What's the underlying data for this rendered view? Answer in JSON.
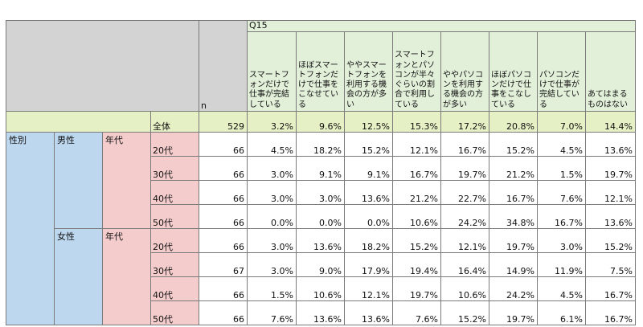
{
  "question_label": "Q15",
  "n_label": "n",
  "columns": [
    "スマートフォンだけで仕事が完結している",
    "ほぼスマートフォンだけで仕事をこなせている",
    "ややスマートフォンを利用する機会の方が多い",
    "スマートフォンとパソコンが半々ぐらいの割合で利用している",
    "ややパソコンを利用する機会の方が多い",
    "ほぼパソコンだけで仕事をこなしている",
    "パソコンだけで仕事が完結している",
    "あてはまるものはない"
  ],
  "total": {
    "label": "全体",
    "n": "529",
    "values": [
      "3.2%",
      "9.6%",
      "12.5%",
      "15.3%",
      "17.2%",
      "20.8%",
      "7.0%",
      "14.4%"
    ]
  },
  "group_labels": {
    "gender": "性別",
    "male": "男性",
    "female": "女性",
    "age": "年代"
  },
  "rows": [
    {
      "gender": "男性",
      "age": "20代",
      "n": "66",
      "values": [
        "4.5%",
        "18.2%",
        "15.2%",
        "12.1%",
        "16.7%",
        "15.2%",
        "4.5%",
        "13.6%"
      ]
    },
    {
      "gender": "男性",
      "age": "30代",
      "n": "66",
      "values": [
        "3.0%",
        "9.1%",
        "9.1%",
        "16.7%",
        "19.7%",
        "21.2%",
        "1.5%",
        "19.7%"
      ]
    },
    {
      "gender": "男性",
      "age": "40代",
      "n": "66",
      "values": [
        "3.0%",
        "3.0%",
        "13.6%",
        "21.2%",
        "22.7%",
        "16.7%",
        "7.6%",
        "12.1%"
      ]
    },
    {
      "gender": "男性",
      "age": "50代",
      "n": "66",
      "values": [
        "0.0%",
        "0.0%",
        "0.0%",
        "10.6%",
        "24.2%",
        "34.8%",
        "16.7%",
        "13.6%"
      ]
    },
    {
      "gender": "女性",
      "age": "20代",
      "n": "66",
      "values": [
        "3.0%",
        "13.6%",
        "18.2%",
        "15.2%",
        "12.1%",
        "19.7%",
        "3.0%",
        "15.2%"
      ]
    },
    {
      "gender": "女性",
      "age": "30代",
      "n": "67",
      "values": [
        "3.0%",
        "9.0%",
        "17.9%",
        "19.4%",
        "16.4%",
        "14.9%",
        "11.9%",
        "7.5%"
      ]
    },
    {
      "gender": "女性",
      "age": "40代",
      "n": "66",
      "values": [
        "1.5%",
        "10.6%",
        "12.1%",
        "19.7%",
        "10.6%",
        "24.2%",
        "4.5%",
        "16.7%"
      ]
    },
    {
      "gender": "女性",
      "age": "50代",
      "n": "66",
      "values": [
        "7.6%",
        "13.6%",
        "13.6%",
        "7.6%",
        "15.2%",
        "19.7%",
        "6.1%",
        "16.7%"
      ]
    }
  ],
  "chart_data": {
    "type": "table",
    "columns": [
      "スマートフォンだけで仕事が完結している",
      "ほぼスマートフォンだけで仕事をこなせている",
      "ややスマートフォンを利用する機会の方が多い",
      "スマートフォンとパソコンが半々ぐらいの割合で利用している",
      "ややパソコンを利用する機会の方が多い",
      "ほぼパソコンだけで仕事をこなしている",
      "パソコンだけで仕事が完結している",
      "あてはまるものはない"
    ],
    "rows": [
      {
        "label": "全体",
        "n": 529,
        "values": [
          3.2,
          9.6,
          12.5,
          15.3,
          17.2,
          20.8,
          7.0,
          14.4
        ]
      },
      {
        "label": "男性 20代",
        "n": 66,
        "values": [
          4.5,
          18.2,
          15.2,
          12.1,
          16.7,
          15.2,
          4.5,
          13.6
        ]
      },
      {
        "label": "男性 30代",
        "n": 66,
        "values": [
          3.0,
          9.1,
          9.1,
          16.7,
          19.7,
          21.2,
          1.5,
          19.7
        ]
      },
      {
        "label": "男性 40代",
        "n": 66,
        "values": [
          3.0,
          3.0,
          13.6,
          21.2,
          22.7,
          16.7,
          7.6,
          12.1
        ]
      },
      {
        "label": "男性 50代",
        "n": 66,
        "values": [
          0.0,
          0.0,
          0.0,
          10.6,
          24.2,
          34.8,
          16.7,
          13.6
        ]
      },
      {
        "label": "女性 20代",
        "n": 66,
        "values": [
          3.0,
          13.6,
          18.2,
          15.2,
          12.1,
          19.7,
          3.0,
          15.2
        ]
      },
      {
        "label": "女性 30代",
        "n": 67,
        "values": [
          3.0,
          9.0,
          17.9,
          19.4,
          16.4,
          14.9,
          11.9,
          7.5
        ]
      },
      {
        "label": "女性 40代",
        "n": 66,
        "values": [
          1.5,
          10.6,
          12.1,
          19.7,
          10.6,
          24.2,
          4.5,
          16.7
        ]
      },
      {
        "label": "女性 50代",
        "n": 66,
        "values": [
          7.6,
          13.6,
          13.6,
          7.6,
          15.2,
          19.7,
          6.1,
          16.7
        ]
      }
    ]
  }
}
